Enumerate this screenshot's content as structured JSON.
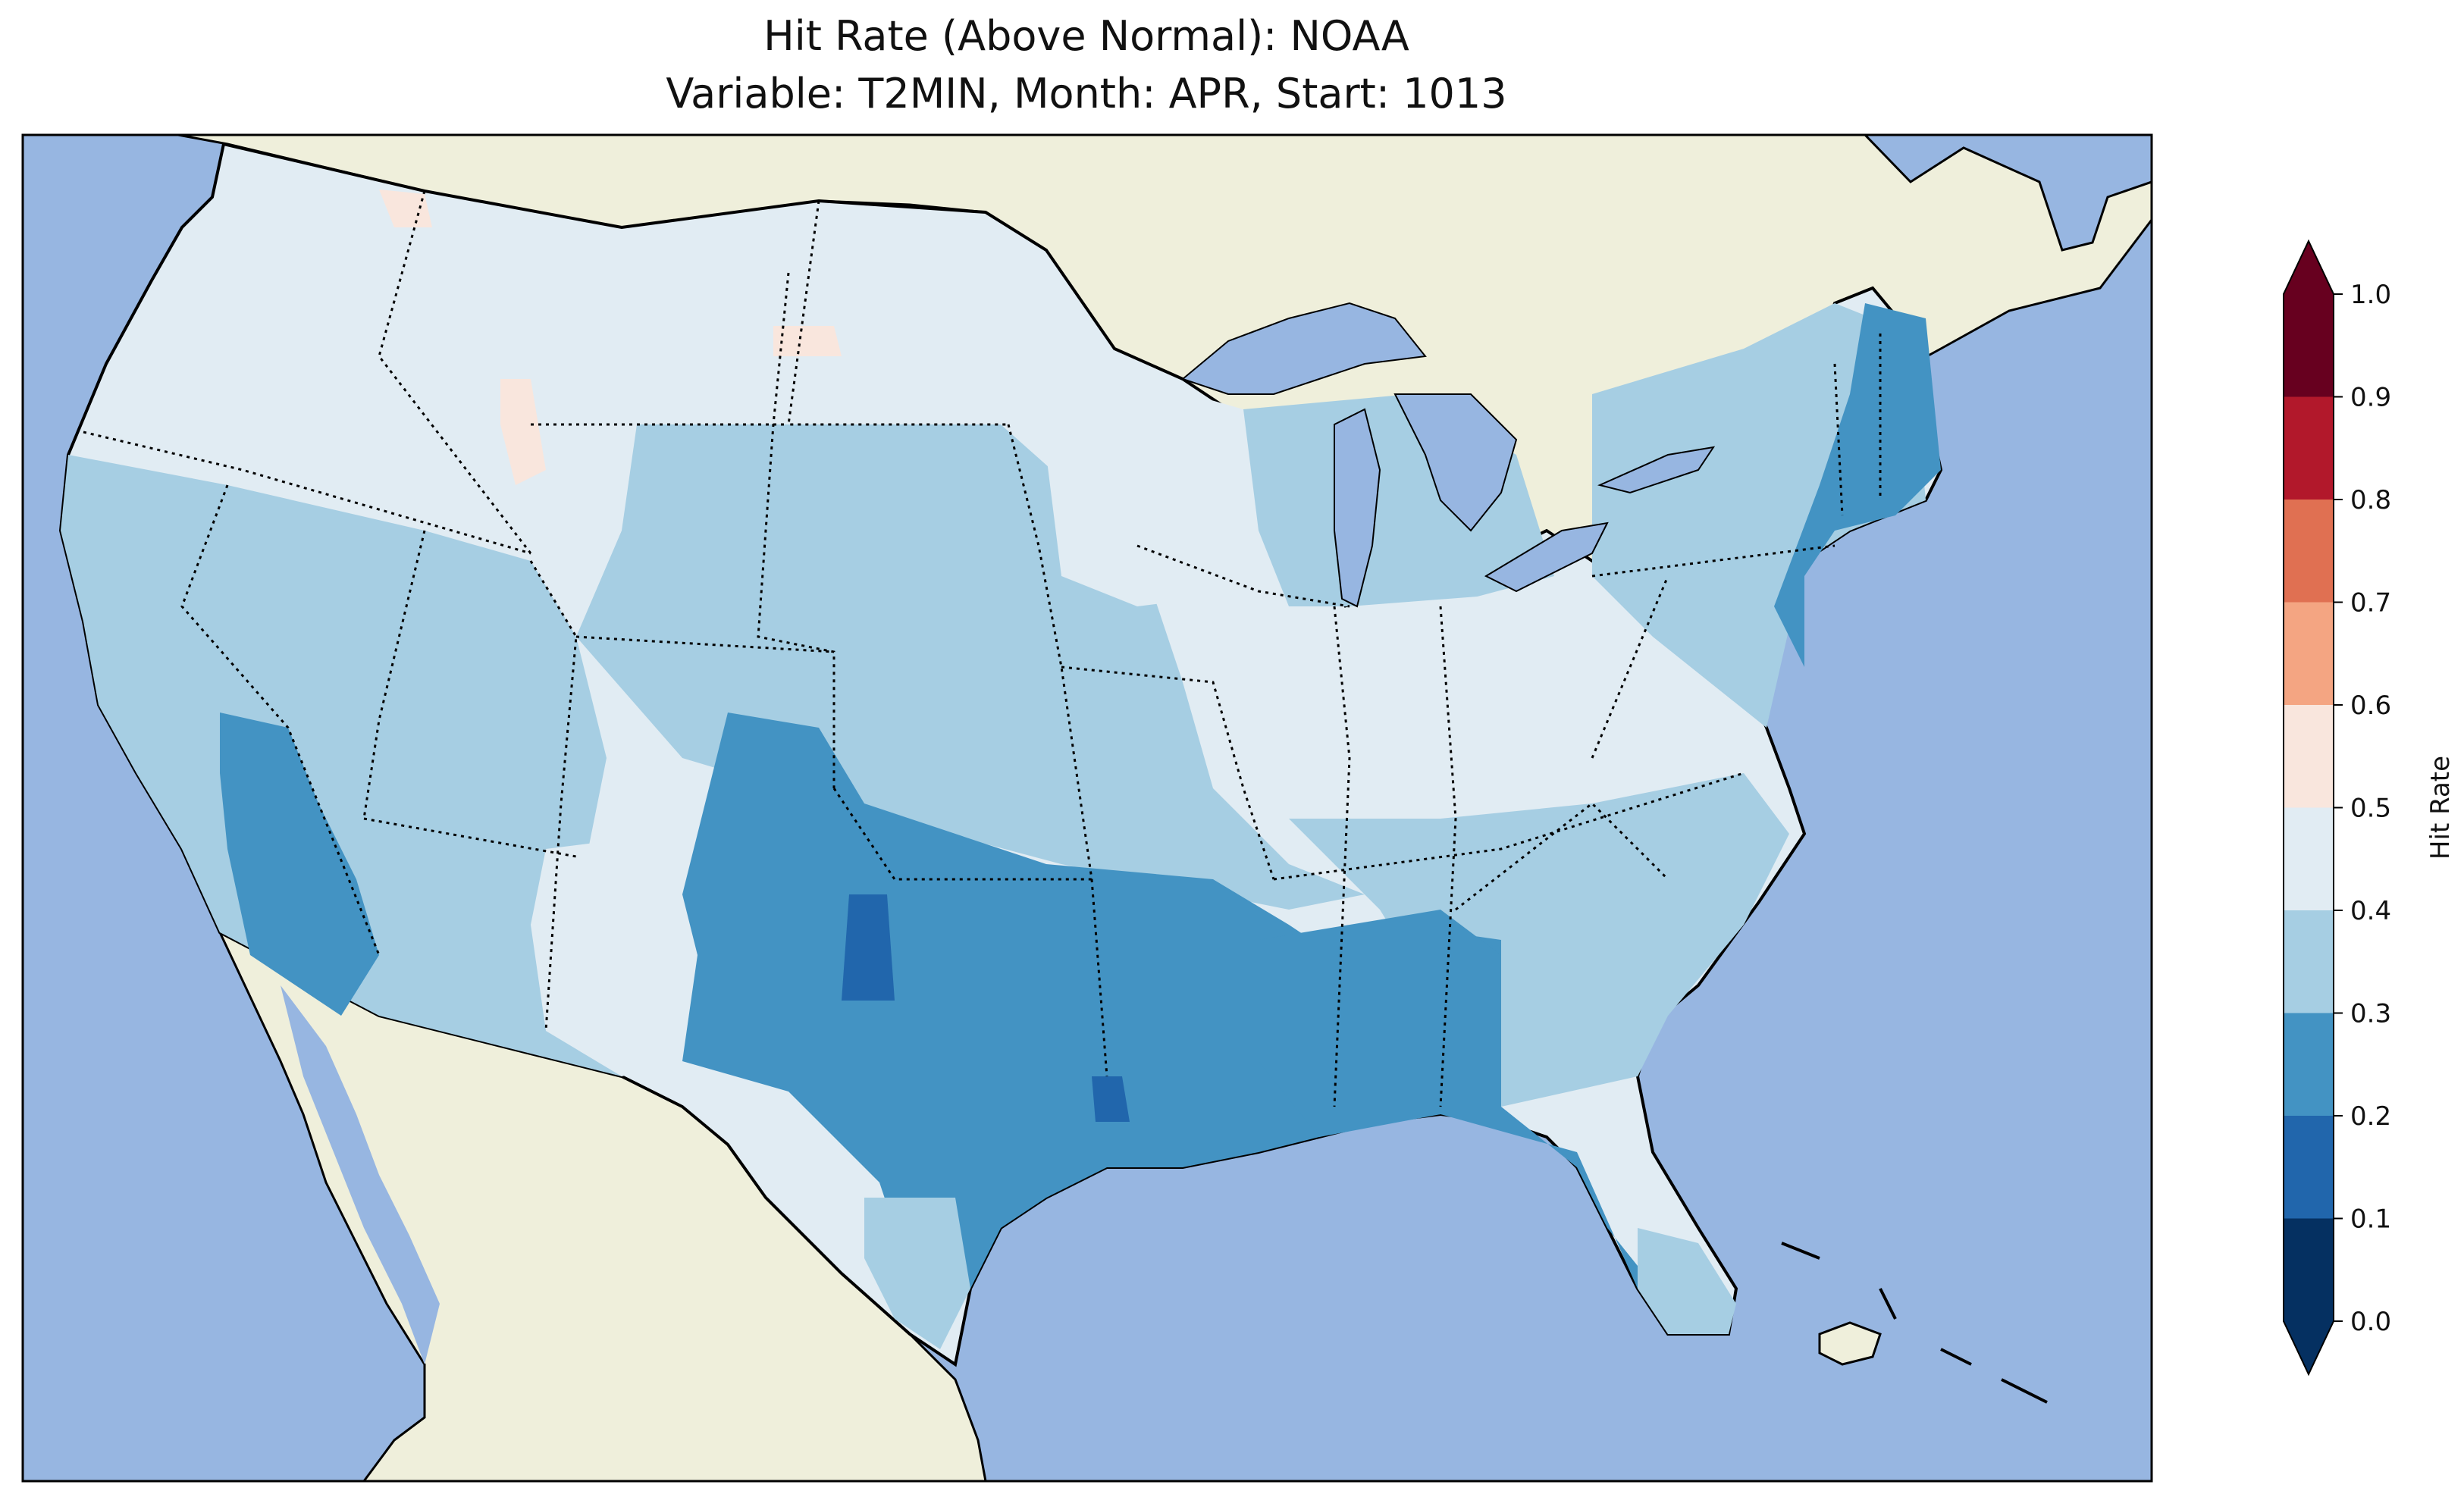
{
  "title": {
    "line1": "Hit Rate (Above Normal): NOAA",
    "line2": "Variable: T2MIN, Month: APR, Start: 1013"
  },
  "colors": {
    "ocean": "#97b6e1",
    "land": "#efefdb",
    "lakes": "#97b6e1",
    "border": "#000000"
  },
  "colorbar": {
    "label": "Hit Rate",
    "extend": "both",
    "ticks": [
      "0.0",
      "0.1",
      "0.2",
      "0.3",
      "0.4",
      "0.5",
      "0.6",
      "0.7",
      "0.8",
      "0.9",
      "1.0"
    ],
    "bins": [
      {
        "range": [
          0.0,
          0.1
        ],
        "color": "#053061"
      },
      {
        "range": [
          0.1,
          0.2
        ],
        "color": "#2166ac"
      },
      {
        "range": [
          0.2,
          0.3
        ],
        "color": "#4393c3"
      },
      {
        "range": [
          0.3,
          0.4
        ],
        "color": "#a6cee3"
      },
      {
        "range": [
          0.4,
          0.5
        ],
        "color": "#e1ecf3"
      },
      {
        "range": [
          0.5,
          0.6
        ],
        "color": "#f9e6dd"
      },
      {
        "range": [
          0.6,
          0.7
        ],
        "color": "#f4a582"
      },
      {
        "range": [
          0.7,
          0.8
        ],
        "color": "#e07052"
      },
      {
        "range": [
          0.8,
          0.9
        ],
        "color": "#b2182b"
      },
      {
        "range": [
          0.9,
          1.0
        ],
        "color": "#67001f"
      }
    ],
    "under_color": "#053061",
    "over_color": "#67001f"
  },
  "map_data": {
    "region": "Contiguous United States",
    "variable": "T2MIN",
    "month": "APR",
    "start": "1013",
    "regions": [
      {
        "area": "Pacific Northwest and Northern Rockies",
        "value": 0.45
      },
      {
        "area": "California and Great Basin",
        "value": 0.35
      },
      {
        "area": "Southern California",
        "value": 0.25
      },
      {
        "area": "Colorado and Central Plains",
        "value": 0.35
      },
      {
        "area": "Southern Plains and Texas",
        "value": 0.25
      },
      {
        "area": "West Texas / Oklahoma panhandle core",
        "value": 0.15
      },
      {
        "area": "Upper Midwest",
        "value": 0.45
      },
      {
        "area": "Ohio Valley",
        "value": 0.45
      },
      {
        "area": "Deep South",
        "value": 0.25
      },
      {
        "area": "Southeast Atlantic",
        "value": 0.35
      },
      {
        "area": "Northeast",
        "value": 0.35
      },
      {
        "area": "New England coast",
        "value": 0.25
      },
      {
        "area": "Florida peninsula",
        "value": 0.3
      },
      {
        "area": "Northern Idaho / Montana patches",
        "value": 0.55
      }
    ]
  }
}
